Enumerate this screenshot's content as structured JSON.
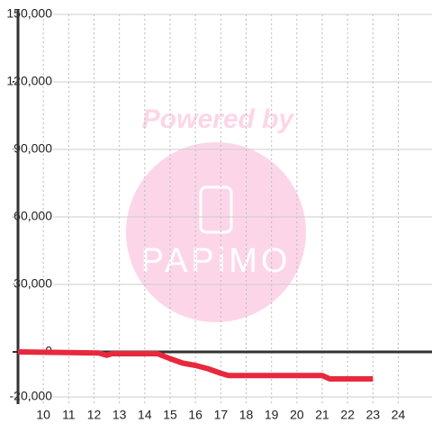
{
  "chart_data": {
    "type": "line",
    "watermark": {
      "top": "Powered by",
      "logo": "PAPiMO"
    },
    "x": [
      9,
      11,
      12.2,
      12.5,
      12.7,
      14.5,
      15,
      15.5,
      16,
      16.5,
      17,
      17.3,
      21,
      21.3,
      23
    ],
    "series": [
      {
        "color": "#e8283c",
        "values": [
          0,
          -300,
          -500,
          -1500,
          -800,
          -800,
          -3000,
          -5000,
          -6000,
          -7500,
          -9500,
          -10500,
          -10500,
          -12000,
          -12000
        ]
      }
    ],
    "xlim": [
      9,
      25.33
    ],
    "xticks": [
      10,
      11,
      12,
      13,
      14,
      15,
      16,
      17,
      18,
      19,
      20,
      21,
      22,
      23,
      24
    ],
    "ylim": [
      -20000,
      150000
    ],
    "yticks": [
      {
        "value": -20000,
        "label": "-20,000"
      },
      0,
      {
        "value": 30000,
        "label": "30,000"
      },
      {
        "value": 60000,
        "label": "60,000"
      },
      {
        "value": 90000,
        "label": "90,000"
      },
      {
        "value": 120000,
        "label": "120,000"
      },
      {
        "value": 150000,
        "label": "150,000"
      }
    ],
    "grid": true
  }
}
